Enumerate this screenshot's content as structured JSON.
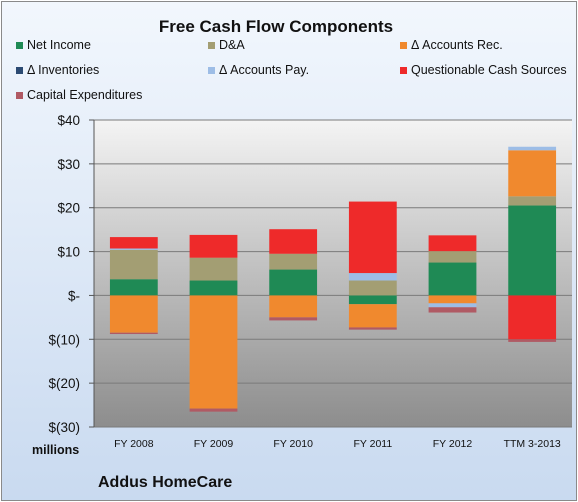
{
  "chart_data": {
    "type": "bar",
    "stacked": true,
    "title": "Free Cash Flow Components",
    "y_unit_label": "millions",
    "footer": "Addus HomeCare",
    "categories": [
      "FY 2008",
      "FY 2009",
      "FY 2010",
      "FY 2011",
      "FY 2012",
      "TTM 3-2013"
    ],
    "ylim": [
      -30,
      40
    ],
    "yticks": [
      -30,
      -20,
      -10,
      0,
      10,
      20,
      30,
      40
    ],
    "ytick_labels": [
      "$(30)",
      "$(20)",
      "$(10)",
      "$-",
      "$10",
      "$20",
      "$30",
      "$40"
    ],
    "grid": true,
    "legend_position": "top",
    "series": [
      {
        "name": "Net Income",
        "color": "#1f8a55",
        "values": [
          3.7,
          3.4,
          5.9,
          -2.0,
          7.5,
          20.5
        ]
      },
      {
        "name": "D&A",
        "color": "#a39e73",
        "values": [
          6.7,
          5.2,
          3.6,
          3.4,
          2.6,
          2.1
        ]
      },
      {
        "name": "Δ Accounts Rec.",
        "color": "#f0892e",
        "values": [
          -8.5,
          -25.8,
          -5.0,
          -5.3,
          -1.8,
          10.5
        ]
      },
      {
        "name": "Δ Inventories",
        "color": "#2b4a72",
        "values": [
          0,
          0,
          0,
          0,
          0,
          0
        ]
      },
      {
        "name": "Δ Accounts Pay.",
        "color": "#9dbde6",
        "values": [
          0.3,
          0,
          0,
          1.7,
          -0.9,
          0.8
        ]
      },
      {
        "name": "Questionable Cash Sources",
        "color": "#ee2a2a",
        "values": [
          2.6,
          5.2,
          5.6,
          16.3,
          3.6,
          -10.0
        ]
      },
      {
        "name": "Capital Expenditures",
        "color": "#b05a64",
        "values": [
          -0.3,
          -0.7,
          -0.7,
          -0.5,
          -1.2,
          -0.6
        ]
      }
    ]
  }
}
